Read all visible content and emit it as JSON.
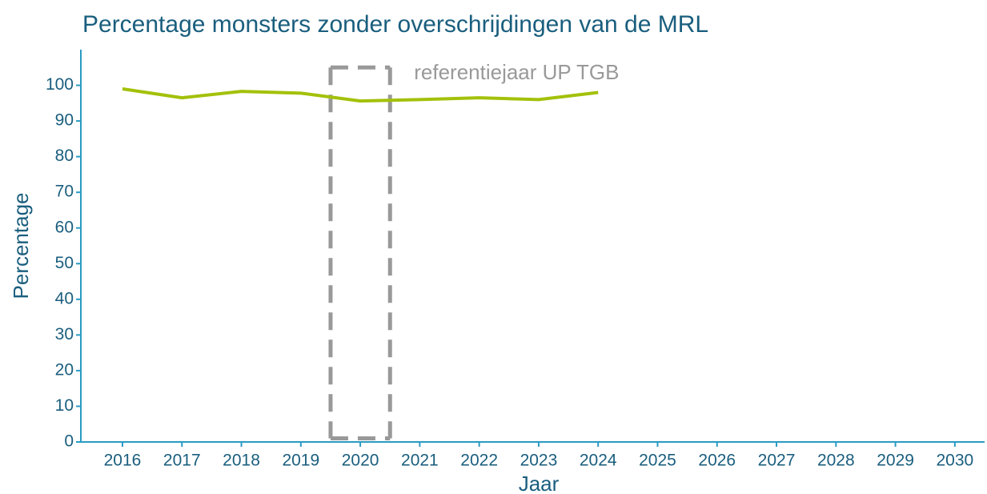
{
  "chart_data": {
    "type": "line",
    "title": "Percentage monsters zonder overschrijdingen van de MRL",
    "x_label": "Jaar",
    "y_label": "Percentage",
    "x": [
      2016,
      2017,
      2018,
      2019,
      2020,
      2021,
      2022,
      2023,
      2024
    ],
    "series": [
      {
        "name": "Percentage",
        "color": "#a3c10a",
        "values": [
          99,
          96.5,
          98.3,
          97.8,
          95.6,
          96,
          96.5,
          96,
          98
        ]
      }
    ],
    "xlim": [
      2015.3,
      2030.5
    ],
    "xticks": [
      2016,
      2017,
      2018,
      2019,
      2020,
      2021,
      2022,
      2023,
      2024,
      2025,
      2026,
      2027,
      2028,
      2029,
      2030
    ],
    "ylim": [
      0,
      110
    ],
    "yticks": [
      0,
      10,
      20,
      30,
      40,
      50,
      60,
      70,
      80,
      90,
      100
    ],
    "annotation": {
      "label": "referentiejaar UP TGB",
      "x": [
        2019.5,
        2020.5
      ],
      "y": [
        1,
        105
      ],
      "color": "#999999"
    }
  }
}
